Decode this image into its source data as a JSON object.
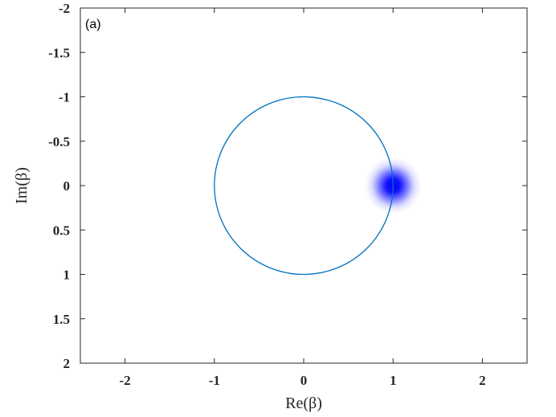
{
  "chart_data": {
    "type": "scatter",
    "panel_label": "(a)",
    "xlabel": "Re(β)",
    "ylabel": "Im(β)",
    "xlim": [
      -2.5,
      2.5
    ],
    "ylim": [
      -2,
      2
    ],
    "y_reversed": true,
    "grid": false,
    "legend": "none",
    "x_ticks": [
      -2,
      -1,
      0,
      1,
      2
    ],
    "x_tick_labels": [
      "-2",
      "-1",
      "0",
      "1",
      "2"
    ],
    "y_ticks": [
      -2,
      -1.5,
      -1,
      -0.5,
      0,
      0.5,
      1,
      1.5,
      2
    ],
    "y_tick_labels": [
      "-2",
      "-1.5",
      "-1",
      "-0.5",
      "0",
      "0.5",
      "1",
      "1.5",
      "2"
    ],
    "circle": {
      "center": [
        0,
        0
      ],
      "radius": 1,
      "color": "#0072BD"
    },
    "gaussian_spot": {
      "center": [
        1,
        0
      ],
      "sigma": 0.1,
      "color": "#0000FF"
    }
  }
}
